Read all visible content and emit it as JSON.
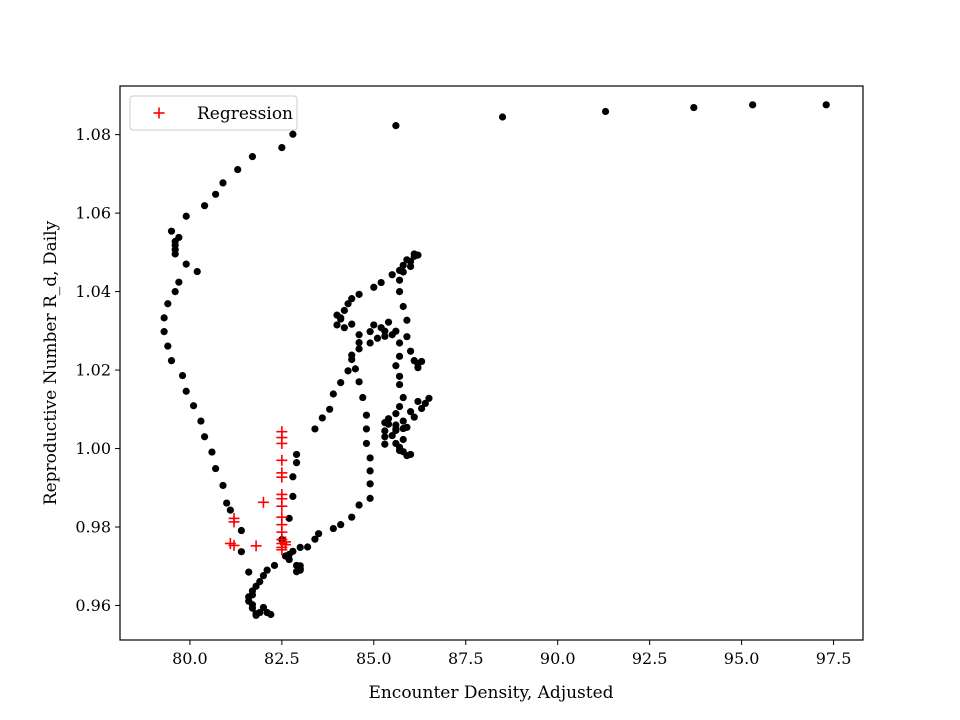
{
  "chart_data": {
    "type": "scatter",
    "xlabel": "Encounter Density, Adjusted",
    "ylabel": "Reproductive Number R_d, Daily",
    "xlim": [
      78.1,
      98.3
    ],
    "ylim": [
      0.9512,
      1.0924
    ],
    "xticks": [
      {
        "value": 80.0,
        "label": "80.0"
      },
      {
        "value": 82.5,
        "label": "82.5"
      },
      {
        "value": 85.0,
        "label": "85.0"
      },
      {
        "value": 87.5,
        "label": "87.5"
      },
      {
        "value": 90.0,
        "label": "90.0"
      },
      {
        "value": 92.5,
        "label": "92.5"
      },
      {
        "value": 95.0,
        "label": "95.0"
      },
      {
        "value": 97.5,
        "label": "97.5"
      }
    ],
    "yticks": [
      {
        "value": 0.96,
        "label": "0.96"
      },
      {
        "value": 0.98,
        "label": "0.98"
      },
      {
        "value": 1.0,
        "label": "1.00"
      },
      {
        "value": 1.02,
        "label": "1.02"
      },
      {
        "value": 1.04,
        "label": "1.04"
      },
      {
        "value": 1.06,
        "label": "1.06"
      },
      {
        "value": 1.08,
        "label": "1.08"
      }
    ],
    "legend_position": "upper-left",
    "series": [
      {
        "marker": "dot",
        "color": "#000000",
        "points": [
          [
            97.3,
            1.0876
          ],
          [
            95.3,
            1.0876
          ],
          [
            93.7,
            1.0869
          ],
          [
            91.3,
            1.0859
          ],
          [
            88.5,
            1.0845
          ],
          [
            85.6,
            1.0823
          ],
          [
            82.8,
            1.0801
          ],
          [
            82.5,
            1.0767
          ],
          [
            81.7,
            1.0744
          ],
          [
            81.3,
            1.0711
          ],
          [
            80.9,
            1.0677
          ],
          [
            80.7,
            1.0648
          ],
          [
            80.4,
            1.0619
          ],
          [
            79.9,
            1.0592
          ],
          [
            79.5,
            1.0554
          ],
          [
            79.7,
            1.0538
          ],
          [
            79.6,
            1.0528
          ],
          [
            79.6,
            1.0518
          ],
          [
            79.6,
            1.0507
          ],
          [
            79.6,
            1.0496
          ],
          [
            79.9,
            1.047
          ],
          [
            80.2,
            1.0451
          ],
          [
            79.7,
            1.0424
          ],
          [
            79.6,
            1.04
          ],
          [
            79.4,
            1.0369
          ],
          [
            79.3,
            1.0333
          ],
          [
            79.3,
            1.0298
          ],
          [
            79.4,
            1.0261
          ],
          [
            79.5,
            1.0224
          ],
          [
            79.8,
            1.0186
          ],
          [
            79.9,
            1.0146
          ],
          [
            80.1,
            1.0109
          ],
          [
            80.3,
            1.007
          ],
          [
            80.4,
            1.003
          ],
          [
            80.6,
            0.9991
          ],
          [
            80.7,
            0.9949
          ],
          [
            80.9,
            0.9906
          ],
          [
            81.0,
            0.9861
          ],
          [
            81.1,
            0.9843
          ],
          [
            81.4,
            0.9791
          ],
          [
            81.4,
            0.9737
          ],
          [
            81.6,
            0.9685
          ],
          [
            81.6,
            0.9622
          ],
          [
            81.6,
            0.9611
          ],
          [
            81.7,
            0.9602
          ],
          [
            81.7,
            0.9593
          ],
          [
            81.8,
            0.9579
          ],
          [
            81.8,
            0.9575
          ],
          [
            81.9,
            0.9582
          ],
          [
            82.0,
            0.9595
          ],
          [
            82.1,
            0.9582
          ],
          [
            82.2,
            0.9577
          ],
          [
            81.7,
            0.9627
          ],
          [
            81.7,
            0.9637
          ],
          [
            81.8,
            0.9649
          ],
          [
            81.9,
            0.9661
          ],
          [
            82.0,
            0.9676
          ],
          [
            82.1,
            0.969
          ],
          [
            82.3,
            0.9702
          ],
          [
            82.6,
            0.9726
          ],
          [
            82.5,
            0.9768
          ],
          [
            82.7,
            0.9822
          ],
          [
            82.8,
            0.9878
          ],
          [
            82.8,
            0.9928
          ],
          [
            82.9,
            0.9964
          ],
          [
            82.9,
            0.9985
          ],
          [
            83.0,
            0.9701
          ],
          [
            83.0,
            0.969
          ],
          [
            82.9,
            0.9686
          ],
          [
            83.0,
            0.9694
          ],
          [
            82.9,
            0.9702
          ],
          [
            82.7,
            0.9717
          ],
          [
            82.7,
            0.973
          ],
          [
            82.8,
            0.9738
          ],
          [
            83.0,
            0.9748
          ],
          [
            83.2,
            0.9749
          ],
          [
            83.4,
            0.9769
          ],
          [
            83.5,
            0.9783
          ],
          [
            83.9,
            0.9796
          ],
          [
            84.1,
            0.9806
          ],
          [
            84.4,
            0.9825
          ],
          [
            84.6,
            0.9856
          ],
          [
            84.9,
            0.9873
          ],
          [
            84.9,
            0.991
          ],
          [
            84.9,
            0.9943
          ],
          [
            84.9,
            0.9976
          ],
          [
            84.8,
            1.0013
          ],
          [
            84.8,
            1.005
          ],
          [
            84.8,
            1.0085
          ],
          [
            84.7,
            1.013
          ],
          [
            84.6,
            1.017
          ],
          [
            84.5,
            1.0203
          ],
          [
            84.4,
            1.0238
          ],
          [
            84.6,
            1.027
          ],
          [
            84.9,
            1.0298
          ],
          [
            85.2,
            1.0308
          ],
          [
            85.3,
            1.0299
          ],
          [
            85.5,
            1.029
          ],
          [
            85.3,
            1.0286
          ],
          [
            85.1,
            1.0281
          ],
          [
            84.9,
            1.0269
          ],
          [
            84.6,
            1.0254
          ],
          [
            84.4,
            1.0227
          ],
          [
            84.3,
            1.0198
          ],
          [
            84.1,
            1.0168
          ],
          [
            83.9,
            1.0139
          ],
          [
            83.8,
            1.01
          ],
          [
            83.6,
            1.0078
          ],
          [
            83.4,
            1.005
          ],
          [
            84.0,
            1.034
          ],
          [
            84.1,
            1.033
          ],
          [
            84.2,
            1.0308
          ],
          [
            84.4,
            1.0317
          ],
          [
            84.6,
            1.029
          ],
          [
            85.0,
            1.0315
          ],
          [
            85.4,
            1.0322
          ],
          [
            85.6,
            1.0299
          ],
          [
            85.7,
            1.0269
          ],
          [
            85.7,
            1.0235
          ],
          [
            85.6,
            1.0211
          ],
          [
            85.7,
            1.0184
          ],
          [
            85.7,
            1.0163
          ],
          [
            85.8,
            1.013
          ],
          [
            85.7,
            1.0107
          ],
          [
            85.6,
            1.0089
          ],
          [
            85.4,
            1.0062
          ],
          [
            85.3,
            1.0045
          ],
          [
            85.3,
            1.0011
          ],
          [
            85.3,
            1.003
          ],
          [
            85.6,
            1.005
          ],
          [
            85.8,
            1.007
          ],
          [
            86.0,
            1.0094
          ],
          [
            86.2,
            1.012
          ],
          [
            86.4,
            1.0115
          ],
          [
            86.5,
            1.0128
          ],
          [
            86.3,
            1.0102
          ],
          [
            86.1,
            1.008
          ],
          [
            85.9,
            1.0054
          ],
          [
            85.6,
            1.0046
          ],
          [
            85.5,
            1.0033
          ],
          [
            85.6,
            1.0013
          ],
          [
            85.7,
            1.0003
          ],
          [
            85.7,
            0.9995
          ],
          [
            85.8,
            0.9992
          ],
          [
            86.0,
            0.9985
          ],
          [
            85.9,
            0.9982
          ],
          [
            85.8,
            1.0023
          ],
          [
            86.2,
            1.0206
          ],
          [
            86.2,
            1.0216
          ],
          [
            86.1,
            1.0224
          ],
          [
            86.3,
            1.0222
          ],
          [
            86.0,
            1.0248
          ],
          [
            85.9,
            1.0285
          ],
          [
            85.9,
            1.0327
          ],
          [
            85.8,
            1.0362
          ],
          [
            85.7,
            1.04
          ],
          [
            85.7,
            1.0429
          ],
          [
            85.8,
            1.045
          ],
          [
            86.0,
            1.0464
          ],
          [
            86.0,
            1.0477
          ],
          [
            86.1,
            1.049
          ],
          [
            86.1,
            1.0496
          ],
          [
            86.2,
            1.0493
          ],
          [
            85.9,
            1.0481
          ],
          [
            85.8,
            1.0467
          ],
          [
            85.7,
            1.0454
          ],
          [
            85.5,
            1.0443
          ],
          [
            85.2,
            1.0423
          ],
          [
            85.0,
            1.0411
          ],
          [
            84.6,
            1.0393
          ],
          [
            84.4,
            1.0382
          ],
          [
            84.3,
            1.0369
          ],
          [
            84.2,
            1.0352
          ],
          [
            84.1,
            1.0333
          ],
          [
            84.0,
            1.0315
          ],
          [
            85.3,
            1.0066
          ],
          [
            85.4,
            1.0076
          ],
          [
            85.6,
            1.006
          ],
          [
            85.8,
            1.0051
          ]
        ]
      },
      {
        "name": "Regression",
        "marker": "plus",
        "color": "#ff0000",
        "points": [
          [
            81.1,
            0.9758
          ],
          [
            81.2,
            0.9753
          ],
          [
            81.2,
            0.9813
          ],
          [
            81.2,
            0.9822
          ],
          [
            81.8,
            0.9752
          ],
          [
            82.0,
            0.9863
          ],
          [
            82.5,
            1.0043
          ],
          [
            82.5,
            1.0028
          ],
          [
            82.5,
            1.0013
          ],
          [
            82.5,
            0.997
          ],
          [
            82.5,
            0.9938
          ],
          [
            82.5,
            0.9927
          ],
          [
            82.5,
            0.9883
          ],
          [
            82.5,
            0.9872
          ],
          [
            82.5,
            0.9853
          ],
          [
            82.5,
            0.9825
          ],
          [
            82.5,
            0.9806
          ],
          [
            82.5,
            0.9787
          ],
          [
            82.5,
            0.9768
          ],
          [
            82.5,
            0.9758
          ],
          [
            82.5,
            0.9748
          ],
          [
            82.5,
            0.9742
          ],
          [
            82.6,
            0.9755
          ],
          [
            82.6,
            0.9762
          ]
        ]
      }
    ]
  }
}
